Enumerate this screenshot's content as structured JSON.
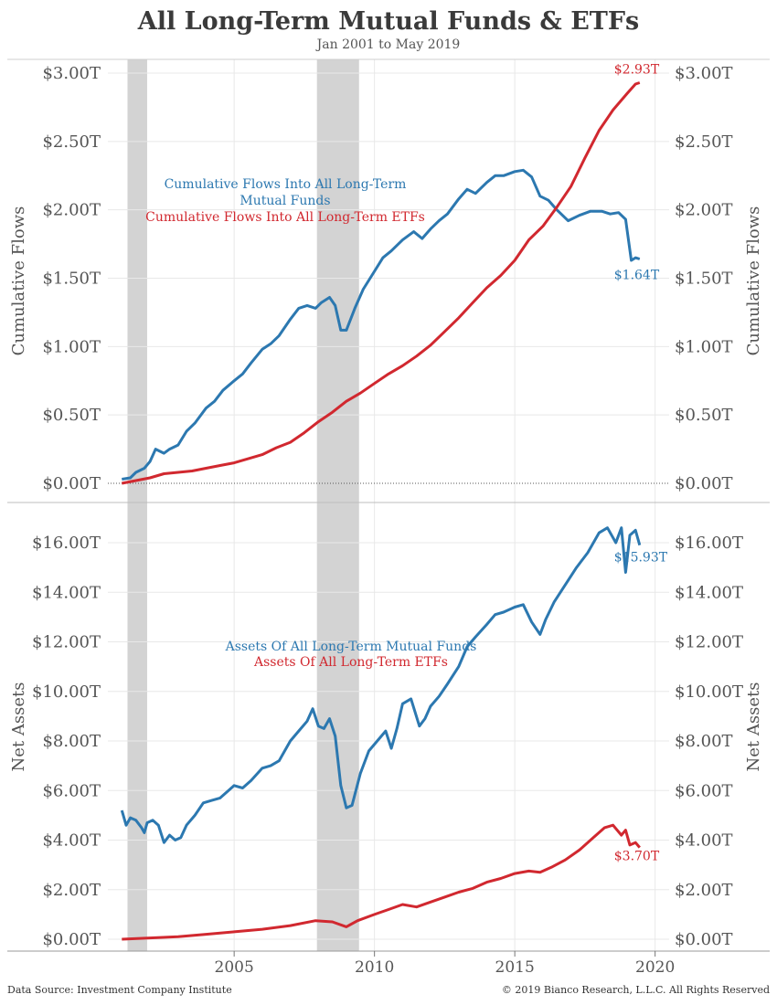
{
  "title": "All Long-Term Mutual Funds & ETFs",
  "subtitle": "Jan 2001 to May 2019",
  "footer": {
    "source": "Data Source: Investment Company Institute",
    "copyright": "© 2019 Bianco Research, L.L.C. All Rights Reserved"
  },
  "colors": {
    "mutual_funds": "#2c78b0",
    "etfs": "#d1282f",
    "recession": "#d3d3d3",
    "grid": "#e8e8e8"
  },
  "chart_data": [
    {
      "type": "line",
      "panel": "top",
      "ylabel": "Cumulative Flows",
      "ylim": [
        0,
        3.0
      ],
      "yticks": [
        0,
        0.5,
        1.0,
        1.5,
        2.0,
        2.5,
        3.0
      ],
      "ytick_labels": [
        "$0.00T",
        "$0.50T",
        "$1.00T",
        "$1.50T",
        "$2.00T",
        "$2.50T",
        "$3.00T"
      ],
      "xlim": [
        2000.5,
        2020.5
      ],
      "xticks": [
        2005,
        2010,
        2015,
        2020
      ],
      "xtick_labels": [
        "2005",
        "2010",
        "2015",
        "2020"
      ],
      "zero_line": "dotted",
      "recessions": [
        [
          2001.2,
          2001.9
        ],
        [
          2007.95,
          2009.45
        ]
      ],
      "annotations": [
        {
          "text": "Cumulative Flows Into All Long-Term",
          "series": 0
        },
        {
          "text": "Mutual Funds",
          "series": 0
        },
        {
          "text": "Cumulative Flows Into All Long-Term ETFs",
          "series": 1
        }
      ],
      "series": [
        {
          "name": "Cumulative Flows Into All Long-Term Mutual Funds",
          "end_label": "$1.64T",
          "x": [
            2001.0,
            2001.3,
            2001.5,
            2001.8,
            2002.0,
            2002.2,
            2002.5,
            2002.7,
            2003.0,
            2003.3,
            2003.6,
            2004.0,
            2004.3,
            2004.6,
            2005.0,
            2005.3,
            2005.6,
            2006.0,
            2006.3,
            2006.6,
            2007.0,
            2007.3,
            2007.6,
            2007.9,
            2008.1,
            2008.4,
            2008.6,
            2008.8,
            2009.0,
            2009.3,
            2009.6,
            2010.0,
            2010.3,
            2010.6,
            2011.0,
            2011.4,
            2011.7,
            2012.0,
            2012.3,
            2012.6,
            2013.0,
            2013.3,
            2013.6,
            2014.0,
            2014.3,
            2014.6,
            2015.0,
            2015.3,
            2015.6,
            2015.9,
            2016.2,
            2016.5,
            2016.9,
            2017.3,
            2017.7,
            2018.1,
            2018.4,
            2018.7,
            2018.95,
            2019.15,
            2019.3,
            2019.45
          ],
          "values": [
            0.03,
            0.04,
            0.08,
            0.11,
            0.16,
            0.25,
            0.22,
            0.25,
            0.28,
            0.38,
            0.44,
            0.55,
            0.6,
            0.68,
            0.75,
            0.8,
            0.88,
            0.98,
            1.02,
            1.08,
            1.2,
            1.28,
            1.3,
            1.28,
            1.32,
            1.36,
            1.3,
            1.12,
            1.12,
            1.28,
            1.42,
            1.55,
            1.65,
            1.7,
            1.78,
            1.84,
            1.79,
            1.86,
            1.92,
            1.97,
            2.08,
            2.15,
            2.12,
            2.2,
            2.25,
            2.25,
            2.28,
            2.29,
            2.24,
            2.1,
            2.07,
            2.0,
            1.92,
            1.96,
            1.99,
            1.99,
            1.97,
            1.98,
            1.93,
            1.63,
            1.65,
            1.64
          ]
        },
        {
          "name": "Cumulative Flows Into All Long-Term ETFs",
          "end_label": "$2.93T",
          "x": [
            2001.0,
            2001.5,
            2002.0,
            2002.5,
            2003.0,
            2003.5,
            2004.0,
            2004.5,
            2005.0,
            2005.5,
            2006.0,
            2006.5,
            2007.0,
            2007.5,
            2008.0,
            2008.5,
            2009.0,
            2009.5,
            2010.0,
            2010.5,
            2011.0,
            2011.5,
            2012.0,
            2012.5,
            2013.0,
            2013.5,
            2014.0,
            2014.5,
            2015.0,
            2015.5,
            2016.0,
            2016.5,
            2017.0,
            2017.5,
            2018.0,
            2018.5,
            2019.0,
            2019.3,
            2019.45
          ],
          "values": [
            0.0,
            0.02,
            0.04,
            0.07,
            0.08,
            0.09,
            0.11,
            0.13,
            0.15,
            0.18,
            0.21,
            0.26,
            0.3,
            0.37,
            0.45,
            0.52,
            0.6,
            0.66,
            0.73,
            0.8,
            0.86,
            0.93,
            1.01,
            1.11,
            1.21,
            1.32,
            1.43,
            1.52,
            1.63,
            1.78,
            1.88,
            2.02,
            2.17,
            2.38,
            2.58,
            2.73,
            2.85,
            2.92,
            2.93
          ]
        }
      ]
    },
    {
      "type": "line",
      "panel": "bottom",
      "ylabel": "Net Assets",
      "ylim": [
        0,
        17.5
      ],
      "yticks": [
        0,
        2,
        4,
        6,
        8,
        10,
        12,
        14,
        16
      ],
      "ytick_labels": [
        "$0.00T",
        "$2.00T",
        "$4.00T",
        "$6.00T",
        "$8.00T",
        "$10.00T",
        "$12.00T",
        "$14.00T",
        "$16.00T"
      ],
      "xlim": [
        2000.5,
        2020.5
      ],
      "xticks": [
        2005,
        2010,
        2015,
        2020
      ],
      "xtick_labels": [
        "2005",
        "2010",
        "2015",
        "2020"
      ],
      "recessions": [
        [
          2001.2,
          2001.9
        ],
        [
          2007.95,
          2009.45
        ]
      ],
      "annotations": [
        {
          "text": "Assets Of All Long-Term Mutual Funds",
          "series": 0
        },
        {
          "text": "Assets Of All Long-Term ETFs",
          "series": 1
        }
      ],
      "series": [
        {
          "name": "Assets Of All Long-Term Mutual Funds",
          "end_label": "$15.93T",
          "x": [
            2001.0,
            2001.15,
            2001.3,
            2001.5,
            2001.7,
            2001.8,
            2001.9,
            2002.1,
            2002.3,
            2002.5,
            2002.7,
            2002.9,
            2003.1,
            2003.3,
            2003.6,
            2003.9,
            2004.2,
            2004.5,
            2004.8,
            2005.0,
            2005.3,
            2005.6,
            2006.0,
            2006.3,
            2006.6,
            2007.0,
            2007.3,
            2007.6,
            2007.8,
            2008.0,
            2008.2,
            2008.4,
            2008.6,
            2008.8,
            2009.0,
            2009.2,
            2009.5,
            2009.8,
            2010.1,
            2010.4,
            2010.6,
            2010.8,
            2011.0,
            2011.3,
            2011.6,
            2011.8,
            2012.0,
            2012.3,
            2012.6,
            2013.0,
            2013.3,
            2013.6,
            2014.0,
            2014.3,
            2014.6,
            2015.0,
            2015.3,
            2015.6,
            2015.9,
            2016.1,
            2016.4,
            2016.8,
            2017.2,
            2017.6,
            2018.0,
            2018.3,
            2018.6,
            2018.8,
            2018.95,
            2019.1,
            2019.3,
            2019.45
          ],
          "values": [
            5.2,
            4.6,
            4.9,
            4.8,
            4.5,
            4.3,
            4.7,
            4.8,
            4.6,
            3.9,
            4.2,
            4.0,
            4.1,
            4.6,
            5.0,
            5.5,
            5.6,
            5.7,
            6.0,
            6.2,
            6.1,
            6.4,
            6.9,
            7.0,
            7.2,
            8.0,
            8.4,
            8.8,
            9.3,
            8.6,
            8.5,
            8.9,
            8.2,
            6.2,
            5.3,
            5.4,
            6.7,
            7.6,
            8.0,
            8.4,
            7.7,
            8.5,
            9.5,
            9.7,
            8.6,
            8.9,
            9.4,
            9.8,
            10.3,
            11.0,
            11.8,
            12.2,
            12.7,
            13.1,
            13.2,
            13.4,
            13.5,
            12.8,
            12.3,
            12.9,
            13.6,
            14.3,
            15.0,
            15.6,
            16.4,
            16.6,
            16.0,
            16.6,
            14.8,
            16.3,
            16.5,
            15.9
          ]
        },
        {
          "name": "Assets Of All Long-Term ETFs",
          "end_label": "$3.70T",
          "x": [
            2001.0,
            2002.0,
            2003.0,
            2004.0,
            2005.0,
            2006.0,
            2007.0,
            2007.9,
            2008.5,
            2009.0,
            2009.4,
            2010.0,
            2010.5,
            2011.0,
            2011.5,
            2012.0,
            2012.5,
            2013.0,
            2013.5,
            2014.0,
            2014.5,
            2015.0,
            2015.5,
            2015.9,
            2016.3,
            2016.8,
            2017.3,
            2017.8,
            2018.2,
            2018.5,
            2018.8,
            2018.95,
            2019.1,
            2019.3,
            2019.45
          ],
          "values": [
            0.0,
            0.05,
            0.1,
            0.2,
            0.3,
            0.4,
            0.55,
            0.75,
            0.7,
            0.5,
            0.75,
            1.0,
            1.2,
            1.4,
            1.3,
            1.5,
            1.7,
            1.9,
            2.05,
            2.3,
            2.45,
            2.65,
            2.75,
            2.7,
            2.9,
            3.2,
            3.6,
            4.1,
            4.5,
            4.6,
            4.2,
            4.4,
            3.8,
            3.9,
            3.7
          ]
        }
      ]
    }
  ]
}
